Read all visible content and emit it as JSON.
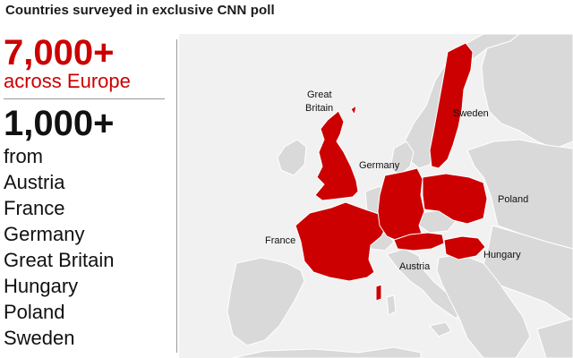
{
  "headline": "Countries surveyed in exclusive CNN poll",
  "stats": {
    "total_value": "7,000+",
    "total_label": "across Europe",
    "per_country_value": "1,000+",
    "per_country_label": "from"
  },
  "countries": [
    "Austria",
    "France",
    "Germany",
    "Great Britain",
    "Hungary",
    "Poland",
    "Sweden"
  ],
  "map": {
    "labels": {
      "great_britain_line1": "Great",
      "great_britain_line2": "Britain",
      "sweden": "Sweden",
      "germany": "Germany",
      "poland": "Poland",
      "france": "France",
      "austria": "Austria",
      "hungary": "Hungary"
    },
    "colors": {
      "highlight": "#cc0000",
      "land": "#d9d9d9",
      "sea": "#f1f1f1",
      "border": "#ffffff"
    }
  }
}
